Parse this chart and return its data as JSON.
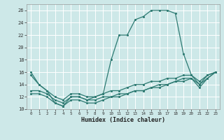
{
  "xlabel": "Humidex (Indice chaleur)",
  "bg_color": "#cde8e8",
  "grid_color": "#ffffff",
  "line_color": "#2d7a72",
  "xlim": [
    -0.5,
    23.5
  ],
  "ylim": [
    10,
    27
  ],
  "yticks": [
    10,
    12,
    14,
    16,
    18,
    20,
    22,
    24,
    26
  ],
  "xticks": [
    0,
    1,
    2,
    3,
    4,
    5,
    6,
    7,
    8,
    9,
    10,
    11,
    12,
    13,
    14,
    15,
    16,
    17,
    18,
    19,
    20,
    21,
    22,
    23
  ],
  "series1_x": [
    0,
    1,
    2,
    3,
    4,
    5,
    6,
    7,
    8,
    9,
    10,
    11,
    12,
    13,
    14,
    15,
    16,
    17,
    18,
    19,
    20,
    21,
    22,
    23
  ],
  "series1_y": [
    16,
    14,
    13,
    11,
    10.5,
    12,
    12,
    11.5,
    12,
    12.5,
    18,
    22,
    22,
    24.5,
    25,
    26,
    26,
    26,
    25.5,
    19,
    15.5,
    14,
    15.5,
    16
  ],
  "series2_x": [
    0,
    1,
    2,
    3,
    4,
    5,
    6,
    7,
    8,
    9,
    10,
    11,
    12,
    13,
    14,
    15,
    16,
    17,
    18,
    19,
    20,
    21,
    22,
    23
  ],
  "series2_y": [
    15.5,
    14,
    13,
    12,
    11.5,
    12.5,
    12.5,
    12,
    12,
    12.5,
    13,
    13,
    13.5,
    14,
    14,
    14.5,
    14.5,
    15,
    15,
    15.5,
    15.5,
    14.5,
    15.5,
    16
  ],
  "series3_x": [
    0,
    1,
    2,
    3,
    4,
    5,
    6,
    7,
    8,
    9,
    10,
    11,
    12,
    13,
    14,
    15,
    16,
    17,
    18,
    19,
    20,
    21,
    22,
    23
  ],
  "series3_y": [
    13,
    13,
    12.5,
    11.5,
    11,
    12,
    12,
    11.5,
    11.5,
    12,
    12,
    12.5,
    12.5,
    13,
    13,
    13.5,
    14,
    14,
    14.5,
    15,
    15,
    14,
    15,
    16
  ],
  "series4_x": [
    0,
    1,
    2,
    3,
    4,
    5,
    6,
    7,
    8,
    9,
    10,
    11,
    12,
    13,
    14,
    15,
    16,
    17,
    18,
    19,
    20,
    21,
    22,
    23
  ],
  "series4_y": [
    12.5,
    12.5,
    12,
    11,
    10.5,
    11.5,
    11.5,
    11,
    11,
    11.5,
    12,
    12,
    12.5,
    13,
    13,
    13.5,
    13.5,
    14,
    14.5,
    14.5,
    15,
    13.5,
    15,
    16
  ]
}
